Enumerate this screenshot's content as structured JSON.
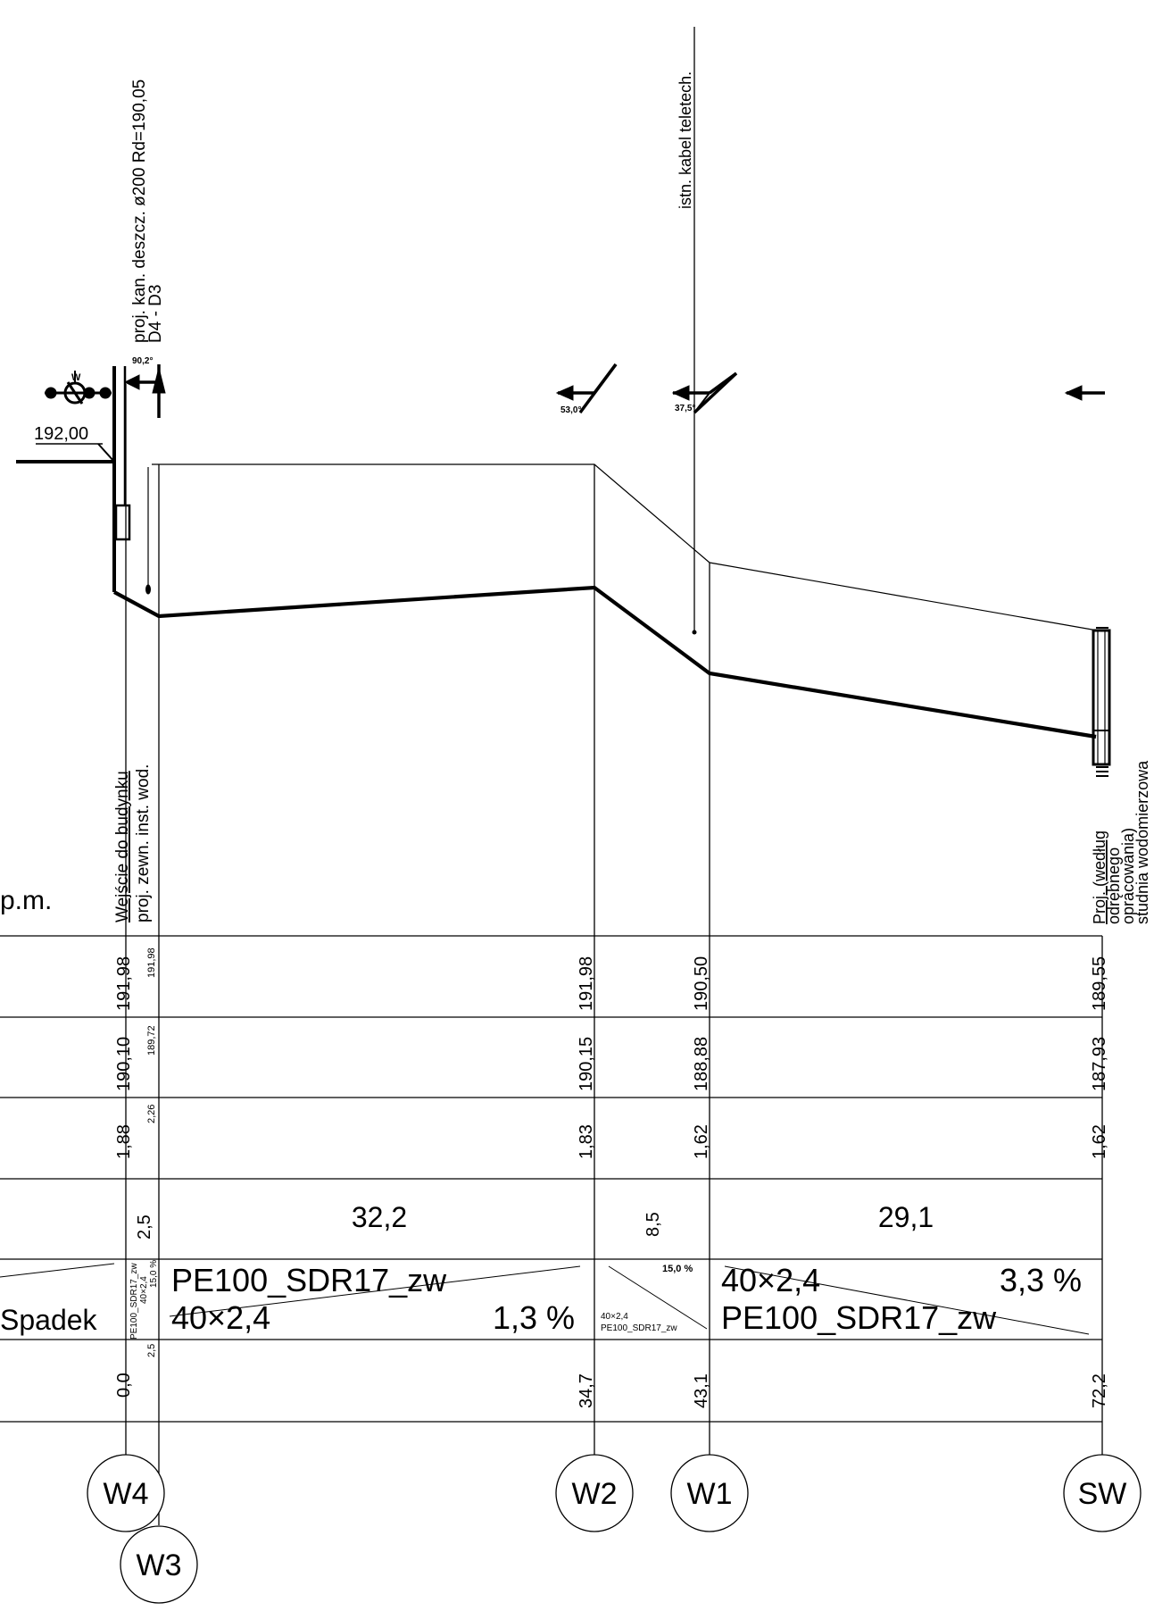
{
  "profile": {
    "base_level_label": "p.m.",
    "slope_row_label": "Spadek",
    "ground_level_label_left": "192,00",
    "valve_label": "W"
  },
  "annotations": {
    "rain_sewer": "proj. kan. deszcz.  ø200  Rd=190,05",
    "rain_sewer_section": "D4 - D3",
    "telecom_cable": "istn. kabel teletech.",
    "building_entry": "Wejście do budynku",
    "internal_installation": "proj. zewn. inst. wod.",
    "meter_well_lines": [
      "Proj. (według",
      "odrębnego",
      "opracowania)",
      "studnia wodomierzowa"
    ],
    "angle_w3": "90,2°",
    "angle_w2": "53,0°",
    "angle_w1": "37,5°"
  },
  "nodes": [
    {
      "id": "W4",
      "ground": "191,98",
      "invert": "190,10",
      "depth": "1,88",
      "chainage": "0,0"
    },
    {
      "id": "W3",
      "ground": "191,98",
      "invert": "189,72",
      "depth": "2,26",
      "chainage": "2,5"
    },
    {
      "id": "W2",
      "ground": "191,98",
      "invert": "190,15",
      "depth": "1,83",
      "chainage": "34,7"
    },
    {
      "id": "W1",
      "ground": "190,50",
      "invert": "188,88",
      "depth": "1,62",
      "chainage": "43,1"
    },
    {
      "id": "SW",
      "ground": "189,55",
      "invert": "187,93",
      "depth": "1,62",
      "chainage": "72,2"
    }
  ],
  "segments": [
    {
      "length": "2,5",
      "pipe": "PE100_SDR17_zw",
      "size": "40×2,4",
      "slope": "15,0 %"
    },
    {
      "length": "32,2",
      "pipe": "PE100_SDR17_zw",
      "size": "40×2,4",
      "slope": "1,3 %"
    },
    {
      "length": "8,5",
      "pipe": "PE100_SDR17_zw",
      "size": "40×2,4",
      "slope": "15,0 %"
    },
    {
      "length": "29,1",
      "pipe": "PE100_SDR17_zw",
      "size": "40×2,4",
      "slope": "3,3 %"
    }
  ],
  "colors": {
    "ink": "#000000",
    "paper": "#ffffff"
  }
}
